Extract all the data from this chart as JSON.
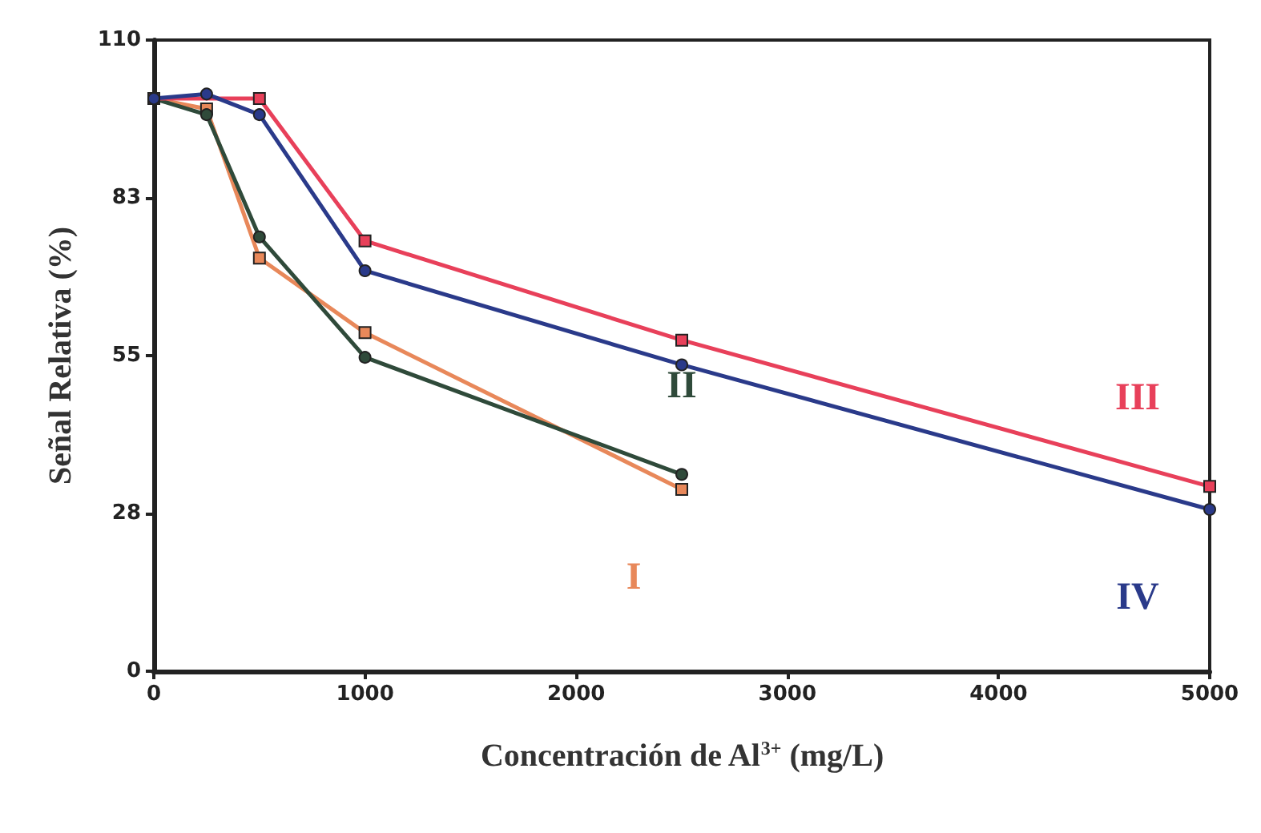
{
  "chart_data": {
    "type": "line",
    "xlabel": "Concentración de Al$^{3+}$ (mg/L)",
    "ylabel": "Señal Relativa (%)",
    "xlim": [
      0,
      5000
    ],
    "xticks": [
      0,
      1000,
      2000,
      3000,
      4000,
      5000
    ],
    "ylim": [
      0,
      110
    ],
    "yticks": [
      0,
      {
        "value": 27.5,
        "label": "28"
      },
      55,
      {
        "value": 82.5,
        "label": "83"
      },
      110
    ],
    "grid": false,
    "legend": false,
    "line_style": "solid",
    "series": [
      {
        "name": "I",
        "color": "#e8885a",
        "marker": "square",
        "x": [
          0,
          250,
          500,
          1000,
          2500
        ],
        "values": [
          99.8,
          98,
          72,
          59,
          31.7
        ]
      },
      {
        "name": "II",
        "color": "#2f4a3a",
        "marker": "circle",
        "x": [
          0,
          250,
          500,
          1000,
          2500
        ],
        "values": [
          99.8,
          97,
          75.7,
          54.7,
          34.3
        ]
      },
      {
        "name": "III",
        "color": "#e8405a",
        "marker": "square",
        "x": [
          0,
          250,
          500,
          1000,
          2500,
          5000
        ],
        "values": [
          99.8,
          null,
          99.8,
          75,
          57.7,
          32.2
        ]
      },
      {
        "name": "IV",
        "color": "#2a3a8a",
        "marker": "circle",
        "x": [
          0,
          250,
          500,
          1000,
          2500,
          5000
        ],
        "values": [
          99.8,
          100.6,
          97,
          69.8,
          53.4,
          28.2
        ]
      }
    ]
  }
}
